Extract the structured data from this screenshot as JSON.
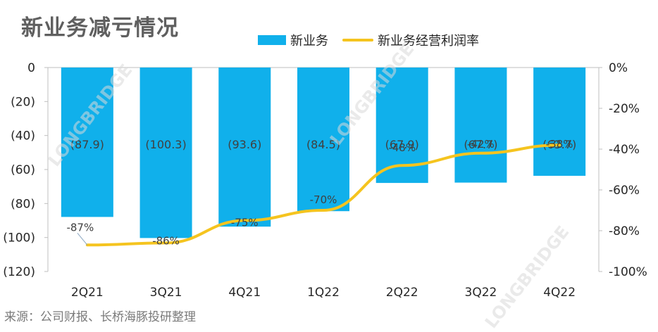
{
  "title": "新业务减亏情况",
  "source": "来源：公司财报、长桥海豚投研整理",
  "watermark": "LONGBRIDGE",
  "colors": {
    "bar": "#10b0eb",
    "line": "#f5c41f",
    "axis": "#bfbfbf",
    "text": "#262626"
  },
  "chart_data": {
    "type": "bar",
    "categories": [
      "2Q21",
      "3Q21",
      "4Q21",
      "1Q22",
      "2Q22",
      "3Q22",
      "4Q22"
    ],
    "series": [
      {
        "name": "新业务",
        "type": "bar",
        "axis": "left",
        "values": [
          -87.9,
          -100.3,
          -93.6,
          -84.5,
          -67.9,
          -67.7,
          -63.7
        ],
        "labels": [
          "(87.9)",
          "(100.3)",
          "(93.6)",
          "(84.5)",
          "(67.9)",
          "(67.7)",
          "(63.7)"
        ]
      },
      {
        "name": "新业务经营利润率",
        "type": "line",
        "axis": "right",
        "values": [
          -87,
          -86,
          -75,
          -70,
          -48,
          -42,
          -38
        ],
        "labels": [
          "-87%",
          "-86%",
          "-75%",
          "-70%",
          "-48%",
          "-42%",
          "-38%"
        ]
      }
    ],
    "y_left": {
      "min": -120,
      "max": 0,
      "tick_values": [
        0,
        -20,
        -40,
        -60,
        -80,
        -100,
        -120
      ],
      "tick_labels": [
        "0",
        "(20)",
        "(40)",
        "(60)",
        "(80)",
        "(100)",
        "(120)"
      ]
    },
    "y_right": {
      "min": -100,
      "max": 0,
      "tick_values": [
        0,
        -20,
        -40,
        -60,
        -80,
        -100
      ],
      "tick_labels": [
        "0%",
        "-20%",
        "-40%",
        "-60%",
        "-80%",
        "-100%"
      ]
    },
    "grid": false,
    "legend": "top"
  }
}
